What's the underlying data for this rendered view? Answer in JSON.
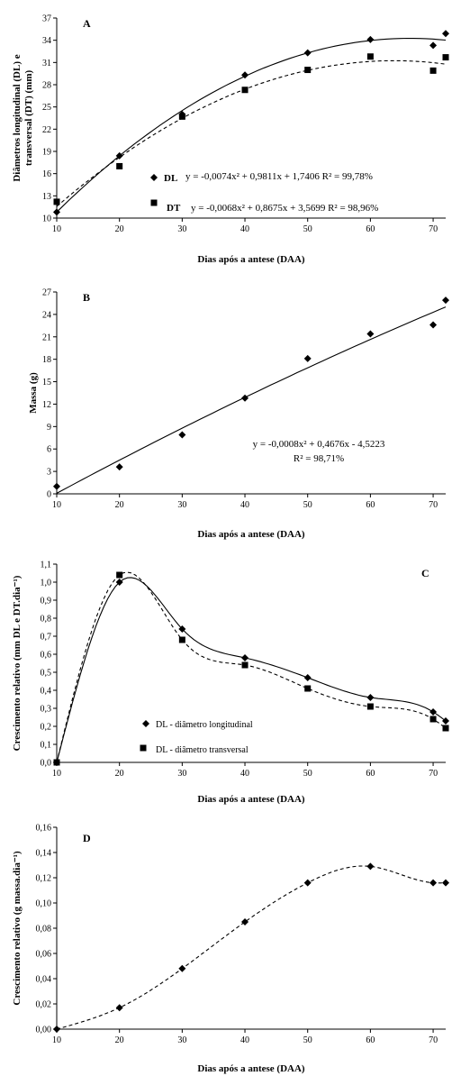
{
  "chart_data": [
    {
      "panel": "A",
      "type": "scatter",
      "xlabel": "Dias após a antese (DAA)",
      "ylabel": "Diâmetros longitudinal (DL) e transversal (DT) (mm)",
      "xlim": [
        10,
        72
      ],
      "ylim": [
        10,
        37
      ],
      "xticks": [
        10,
        20,
        30,
        40,
        50,
        60,
        70
      ],
      "yticks": [
        10,
        13,
        16,
        19,
        22,
        25,
        28,
        31,
        34,
        37
      ],
      "series": [
        {
          "name": "DL",
          "marker": "diamond",
          "line": "solid",
          "x": [
            10,
            20,
            30,
            40,
            50,
            60,
            70,
            72
          ],
          "y": [
            10.8,
            18.4,
            24.0,
            29.3,
            32.3,
            34.1,
            33.3,
            34.9
          ],
          "equation": "y = -0,0074x² + 0,9811x + 1,7406  R² = 99,78%"
        },
        {
          "name": "DT",
          "marker": "square",
          "line": "dashed",
          "x": [
            10,
            20,
            30,
            40,
            50,
            60,
            70,
            72
          ],
          "y": [
            12.2,
            17.0,
            23.7,
            27.3,
            30.0,
            31.8,
            29.9,
            31.7
          ],
          "equation": "y = -0,0068x² + 0,8675x + 3,5699  R² = 98,96%"
        }
      ]
    },
    {
      "panel": "B",
      "type": "scatter",
      "xlabel": "Dias após a antese (DAA)",
      "ylabel": "Massa (g)",
      "xlim": [
        10,
        72
      ],
      "ylim": [
        0,
        27
      ],
      "xticks": [
        10,
        20,
        30,
        40,
        50,
        60,
        70
      ],
      "yticks": [
        0,
        3,
        6,
        9,
        12,
        15,
        18,
        21,
        24,
        27
      ],
      "series": [
        {
          "name": "",
          "marker": "diamond",
          "line": "solid",
          "x": [
            10,
            20,
            30,
            40,
            50,
            60,
            70,
            72
          ],
          "y": [
            1.0,
            3.6,
            7.9,
            12.8,
            18.1,
            21.4,
            22.6,
            25.9
          ]
        }
      ],
      "equation_line1": "y = -0,0008x² + 0,4676x - 4,5223",
      "equation_line2": "R² = 98,71%"
    },
    {
      "panel": "C",
      "type": "line",
      "xlabel": "Dias após a antese (DAA)",
      "ylabel": "Crescimento relativo (mm DL e DT.dia⁻¹)",
      "xlim": [
        10,
        72
      ],
      "ylim": [
        0,
        1.1
      ],
      "xticks": [
        10,
        20,
        30,
        40,
        50,
        60,
        70
      ],
      "yticks": [
        "0,0",
        "0,1",
        "0,2",
        "0,3",
        "0,4",
        "0,5",
        "0,6",
        "0,7",
        "0,8",
        "0,9",
        "1,0",
        "1,1"
      ],
      "series": [
        {
          "name": "DL - diâmetro longitudinal",
          "marker": "diamond",
          "line": "solid",
          "x": [
            10,
            20,
            30,
            40,
            50,
            60,
            70,
            72
          ],
          "y": [
            0.0,
            1.0,
            0.74,
            0.58,
            0.47,
            0.36,
            0.28,
            0.23
          ]
        },
        {
          "name": "DL - diâmetro transversal",
          "marker": "square",
          "line": "dashed",
          "x": [
            10,
            20,
            30,
            40,
            50,
            60,
            70,
            72
          ],
          "y": [
            0.0,
            1.04,
            0.68,
            0.54,
            0.41,
            0.31,
            0.24,
            0.19
          ]
        }
      ]
    },
    {
      "panel": "D",
      "type": "line",
      "xlabel": "Dias após a antese (DAA)",
      "ylabel": "Crescimento relativo (g massa.dia⁻¹)",
      "xlim": [
        10,
        72
      ],
      "ylim": [
        0,
        0.16
      ],
      "xticks": [
        10,
        20,
        30,
        40,
        50,
        60,
        70
      ],
      "yticks": [
        "0,00",
        "0,02",
        "0,04",
        "0,06",
        "0,08",
        "0,10",
        "0,12",
        "0,14",
        "0,16"
      ],
      "series": [
        {
          "name": "",
          "marker": "diamond",
          "line": "dashed",
          "x": [
            10,
            20,
            30,
            40,
            50,
            60,
            70,
            72
          ],
          "y": [
            0.0,
            0.017,
            0.048,
            0.085,
            0.116,
            0.129,
            0.116,
            0.116
          ]
        }
      ]
    }
  ]
}
